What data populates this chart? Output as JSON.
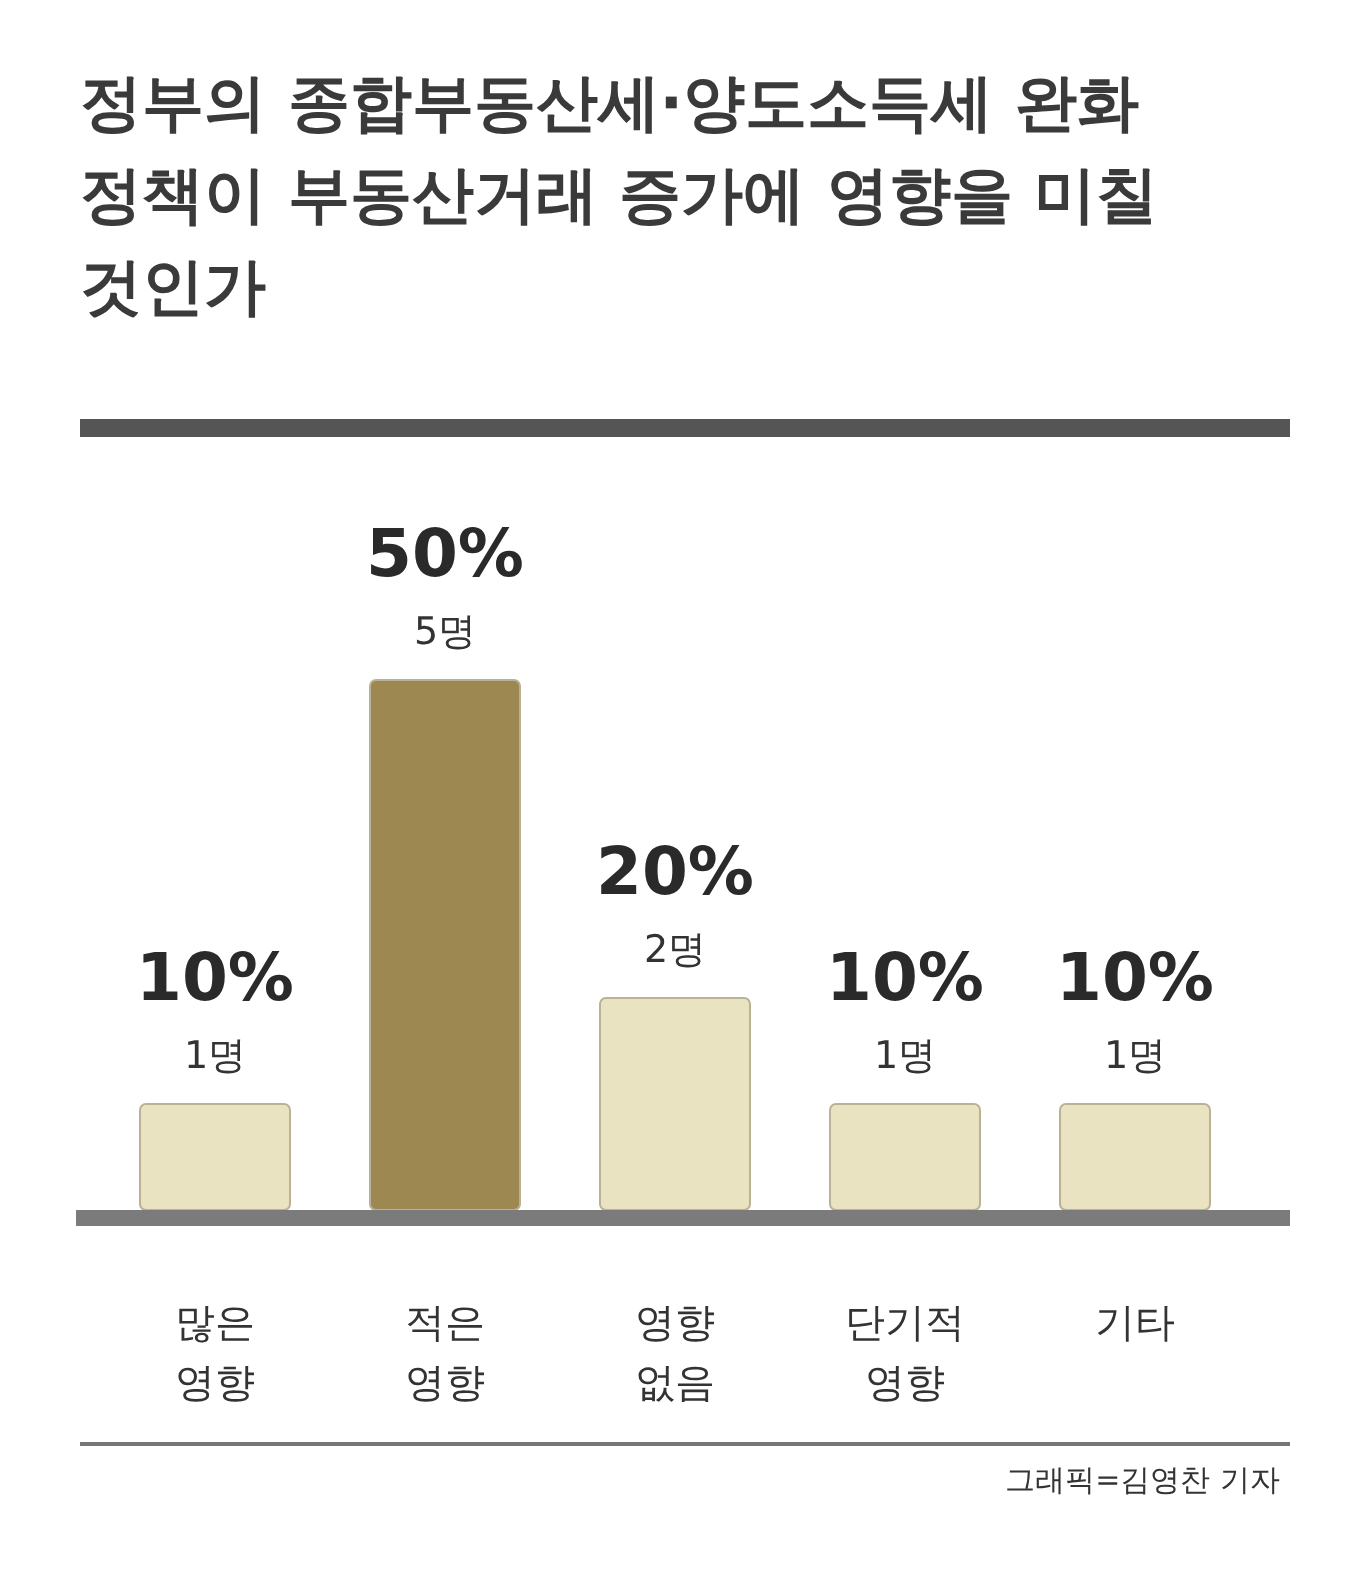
{
  "chart_data": {
    "type": "bar",
    "title": "정부의 종합부동산세·양도소득세 완화 정책이 부동산거래 증가에 영향을 미칠 것인가",
    "categories": [
      "많은 영향",
      "적은 영향",
      "영향 없음",
      "단기적 영향",
      "기타"
    ],
    "values": [
      10,
      50,
      20,
      10,
      10
    ],
    "colors": [
      "#e9e3c2",
      "#9e8852",
      "#e9e3c2",
      "#e9e3c2",
      "#e9e3c2"
    ],
    "value_labels": [
      "10%",
      "50%",
      "20%",
      "10%",
      "10%"
    ],
    "annotations": [
      {
        "text": "1명",
        "x": "많은 영향",
        "y": 10
      },
      {
        "text": "5명",
        "x": "적은 영향",
        "y": 50
      },
      {
        "text": "2명",
        "x": "영향 없음",
        "y": 20
      },
      {
        "text": "1명",
        "x": "단기적 영향",
        "y": 10
      },
      {
        "text": "1명",
        "x": "기타",
        "y": 10
      },
      "그래픽=김영찬 기자"
    ]
  }
}
